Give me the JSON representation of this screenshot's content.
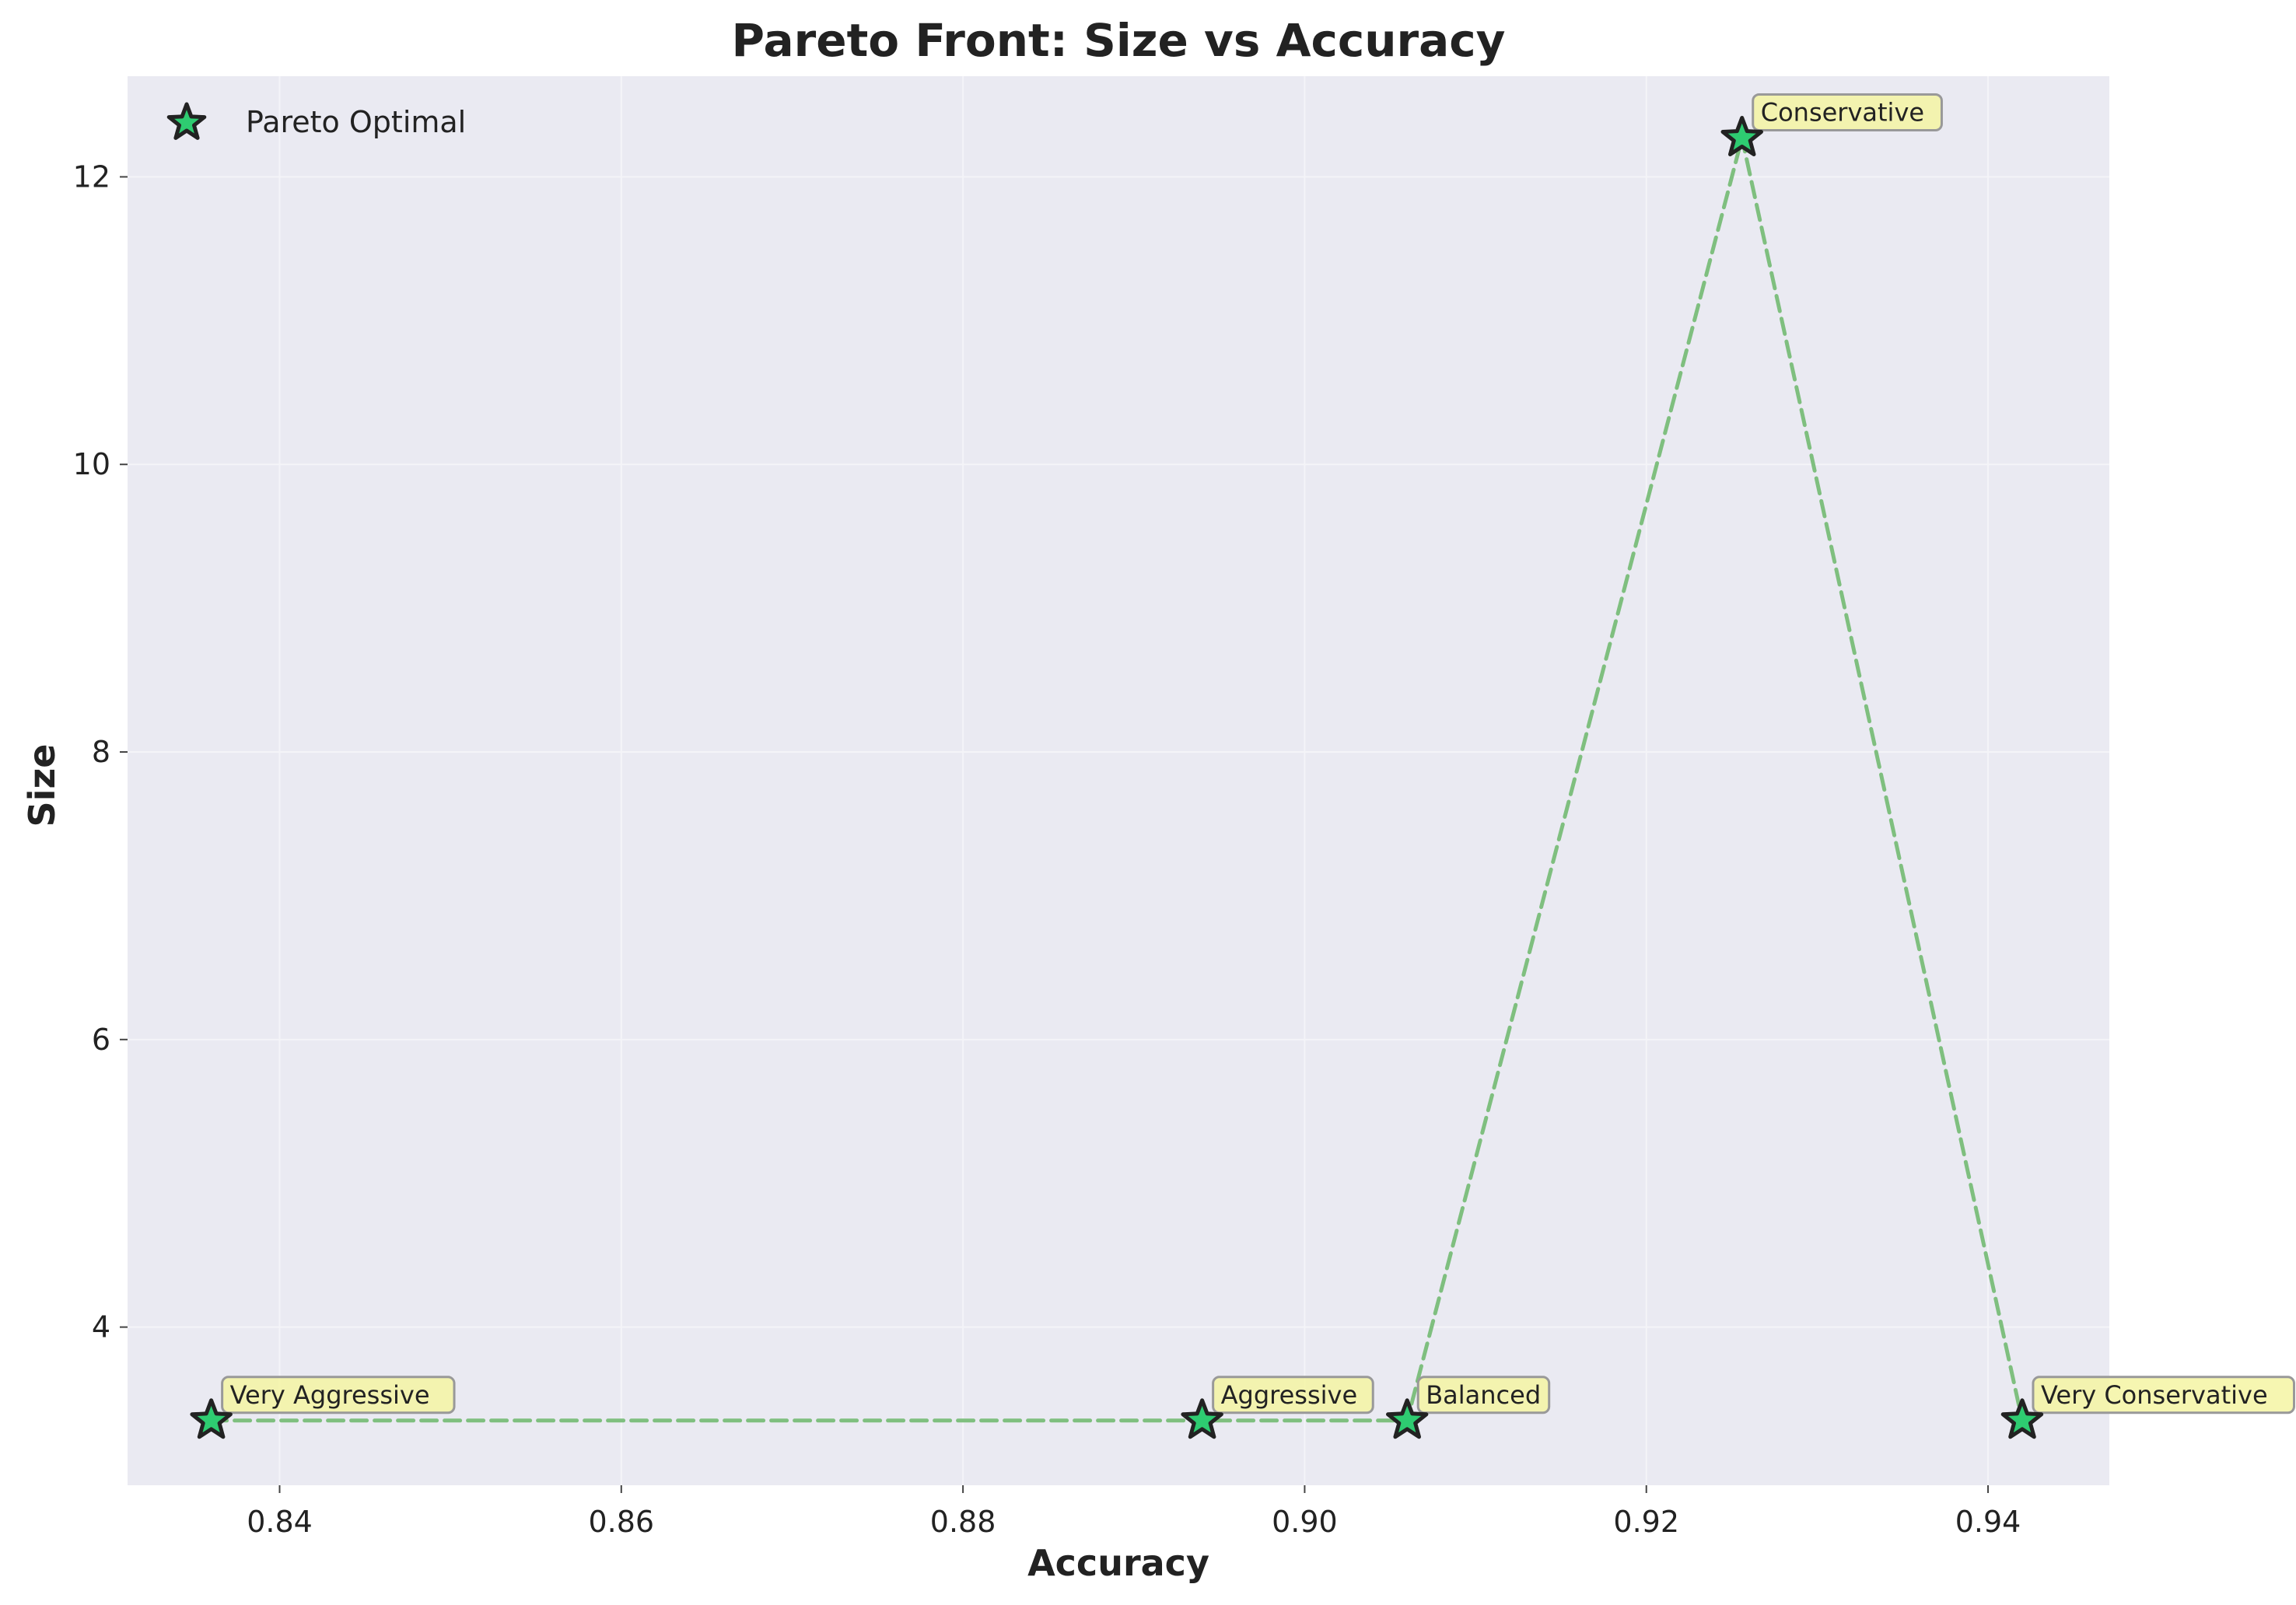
{
  "chart_data": {
    "type": "scatter",
    "title": "Pareto Front: Size vs Accuracy",
    "xlabel": "Accuracy",
    "ylabel": "Size",
    "xlim": [
      0.8311,
      0.9471
    ],
    "ylim": [
      2.9,
      12.7
    ],
    "xticks": [
      "0.84",
      "0.86",
      "0.88",
      "0.90",
      "0.92",
      "0.94"
    ],
    "yticks": [
      "4",
      "6",
      "8",
      "10",
      "12"
    ],
    "xtick_values": [
      0.84,
      0.86,
      0.88,
      0.9,
      0.92,
      0.94
    ],
    "ytick_values": [
      4,
      6,
      8,
      10,
      12
    ],
    "grid": true,
    "legend_position": "top-left",
    "series": [
      {
        "name": "Pareto Optimal",
        "marker": "star",
        "connector": "dashed",
        "points": [
          {
            "x": 0.836,
            "y": 3.35,
            "label": "Very Aggressive"
          },
          {
            "x": 0.894,
            "y": 3.35,
            "label": "Aggressive"
          },
          {
            "x": 0.906,
            "y": 3.35,
            "label": "Balanced"
          },
          {
            "x": 0.9256,
            "y": 12.27,
            "label": "Conservative"
          },
          {
            "x": 0.942,
            "y": 3.35,
            "label": "Very Conservative"
          }
        ]
      }
    ],
    "colors": {
      "plot_bg": "#eaeaf2",
      "grid": "#f4f4f8",
      "marker_fill": "#2ecc71",
      "marker_edge": "#222222",
      "line": "#7fbf7f",
      "anno_bg": "#f5f5a3",
      "anno_edge": "#999999"
    }
  }
}
